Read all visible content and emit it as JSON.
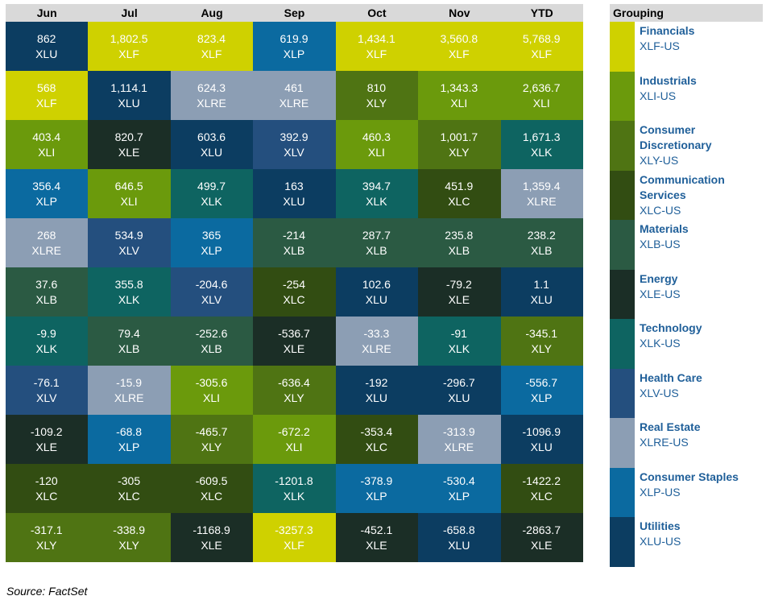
{
  "chart_data": {
    "type": "table",
    "columns": [
      "Jun",
      "Jul",
      "Aug",
      "Sep",
      "Oct",
      "Nov",
      "YTD"
    ],
    "rows": [
      [
        {
          "v": "862",
          "t": "XLU"
        },
        {
          "v": "1,802.5",
          "t": "XLF"
        },
        {
          "v": "823.4",
          "t": "XLF"
        },
        {
          "v": "619.9",
          "t": "XLP"
        },
        {
          "v": "1,434.1",
          "t": "XLF"
        },
        {
          "v": "3,560.8",
          "t": "XLF"
        },
        {
          "v": "5,768.9",
          "t": "XLF"
        }
      ],
      [
        {
          "v": "568",
          "t": "XLF"
        },
        {
          "v": "1,114.1",
          "t": "XLU"
        },
        {
          "v": "624.3",
          "t": "XLRE"
        },
        {
          "v": "461",
          "t": "XLRE"
        },
        {
          "v": "810",
          "t": "XLY"
        },
        {
          "v": "1,343.3",
          "t": "XLI"
        },
        {
          "v": "2,636.7",
          "t": "XLI"
        }
      ],
      [
        {
          "v": "403.4",
          "t": "XLI"
        },
        {
          "v": "820.7",
          "t": "XLE"
        },
        {
          "v": "603.6",
          "t": "XLU"
        },
        {
          "v": "392.9",
          "t": "XLV"
        },
        {
          "v": "460.3",
          "t": "XLI"
        },
        {
          "v": "1,001.7",
          "t": "XLY"
        },
        {
          "v": "1,671.3",
          "t": "XLK"
        }
      ],
      [
        {
          "v": "356.4",
          "t": "XLP"
        },
        {
          "v": "646.5",
          "t": "XLI"
        },
        {
          "v": "499.7",
          "t": "XLK"
        },
        {
          "v": "163",
          "t": "XLU"
        },
        {
          "v": "394.7",
          "t": "XLK"
        },
        {
          "v": "451.9",
          "t": "XLC"
        },
        {
          "v": "1,359.4",
          "t": "XLRE"
        }
      ],
      [
        {
          "v": "268",
          "t": "XLRE"
        },
        {
          "v": "534.9",
          "t": "XLV"
        },
        {
          "v": "365",
          "t": "XLP"
        },
        {
          "v": "-214",
          "t": "XLB"
        },
        {
          "v": "287.7",
          "t": "XLB"
        },
        {
          "v": "235.8",
          "t": "XLB"
        },
        {
          "v": "238.2",
          "t": "XLB"
        }
      ],
      [
        {
          "v": "37.6",
          "t": "XLB"
        },
        {
          "v": "355.8",
          "t": "XLK"
        },
        {
          "v": "-204.6",
          "t": "XLV"
        },
        {
          "v": "-254",
          "t": "XLC"
        },
        {
          "v": "102.6",
          "t": "XLU"
        },
        {
          "v": "-79.2",
          "t": "XLE"
        },
        {
          "v": "1.1",
          "t": "XLU"
        }
      ],
      [
        {
          "v": "-9.9",
          "t": "XLK"
        },
        {
          "v": "79.4",
          "t": "XLB"
        },
        {
          "v": "-252.6",
          "t": "XLB"
        },
        {
          "v": "-536.7",
          "t": "XLE"
        },
        {
          "v": "-33.3",
          "t": "XLRE"
        },
        {
          "v": "-91",
          "t": "XLK"
        },
        {
          "v": "-345.1",
          "t": "XLY"
        }
      ],
      [
        {
          "v": "-76.1",
          "t": "XLV"
        },
        {
          "v": "-15.9",
          "t": "XLRE"
        },
        {
          "v": "-305.6",
          "t": "XLI"
        },
        {
          "v": "-636.4",
          "t": "XLY"
        },
        {
          "v": "-192",
          "t": "XLU"
        },
        {
          "v": "-296.7",
          "t": "XLU"
        },
        {
          "v": "-556.7",
          "t": "XLP"
        }
      ],
      [
        {
          "v": "-109.2",
          "t": "XLE"
        },
        {
          "v": "-68.8",
          "t": "XLP"
        },
        {
          "v": "-465.7",
          "t": "XLY"
        },
        {
          "v": "-672.2",
          "t": "XLI"
        },
        {
          "v": "-353.4",
          "t": "XLC"
        },
        {
          "v": "-313.9",
          "t": "XLRE"
        },
        {
          "v": "-1096.9",
          "t": "XLU"
        }
      ],
      [
        {
          "v": "-120",
          "t": "XLC"
        },
        {
          "v": "-305",
          "t": "XLC"
        },
        {
          "v": "-609.5",
          "t": "XLC"
        },
        {
          "v": "-1201.8",
          "t": "XLK"
        },
        {
          "v": "-378.9",
          "t": "XLP"
        },
        {
          "v": "-530.4",
          "t": "XLP"
        },
        {
          "v": "-1422.2",
          "t": "XLC"
        }
      ],
      [
        {
          "v": "-317.1",
          "t": "XLY"
        },
        {
          "v": "-338.9",
          "t": "XLY"
        },
        {
          "v": "-1168.9",
          "t": "XLE"
        },
        {
          "v": "-3257.3",
          "t": "XLF"
        },
        {
          "v": "-452.1",
          "t": "XLE"
        },
        {
          "v": "-658.8",
          "t": "XLU"
        },
        {
          "v": "-2863.7",
          "t": "XLE"
        }
      ]
    ],
    "legend_title": "Grouping",
    "legend": [
      {
        "name": "Financials",
        "ticker": "XLF-US",
        "key": "XLF"
      },
      {
        "name": "Industrials",
        "ticker": "XLI-US",
        "key": "XLI"
      },
      {
        "name": "Consumer Discretionary",
        "ticker": "XLY-US",
        "key": "XLY"
      },
      {
        "name": "Communication Services",
        "ticker": "XLC-US",
        "key": "XLC"
      },
      {
        "name": "Materials",
        "ticker": "XLB-US",
        "key": "XLB"
      },
      {
        "name": "Energy",
        "ticker": "XLE-US",
        "key": "XLE"
      },
      {
        "name": "Technology",
        "ticker": "XLK-US",
        "key": "XLK"
      },
      {
        "name": "Health Care",
        "ticker": "XLV-US",
        "key": "XLV"
      },
      {
        "name": "Real Estate",
        "ticker": "XLRE-US",
        "key": "XLRE"
      },
      {
        "name": "Consumer Staples",
        "ticker": "XLP-US",
        "key": "XLP"
      },
      {
        "name": "Utilities",
        "ticker": "XLU-US",
        "key": "XLU"
      }
    ],
    "colors": {
      "XLF": "#cfd100",
      "XLI": "#6b9a0c",
      "XLY": "#4f7413",
      "XLC": "#324d12",
      "XLB": "#2b5a43",
      "XLE": "#1b2e26",
      "XLK": "#0e6461",
      "XLV": "#244f7e",
      "XLRE": "#8c9eb4",
      "XLP": "#0b6aa0",
      "XLU": "#0c3d61"
    }
  },
  "source": "Source: FactSet"
}
